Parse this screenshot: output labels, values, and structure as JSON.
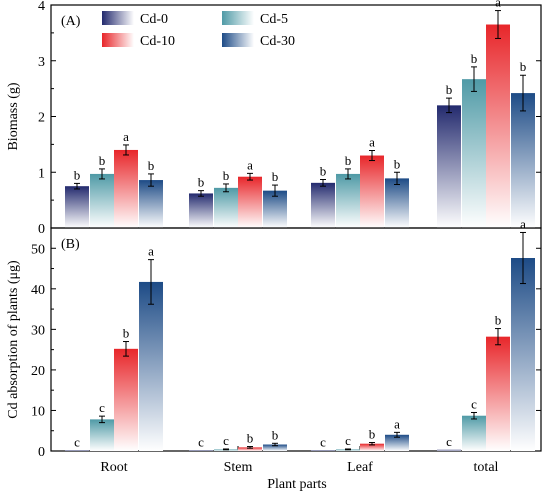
{
  "figure": {
    "xlabel": "Plant parts"
  },
  "colors": {
    "Cd-0": {
      "dark": "#232a6e",
      "light": "#ffffff"
    },
    "Cd-5": {
      "dark": "#4f9aa6",
      "light": "#ffffff"
    },
    "Cd-10": {
      "dark": "#e8262a",
      "light": "#ffffff"
    },
    "Cd-30": {
      "dark": "#1d4b86",
      "light": "#ffffff"
    }
  },
  "chart_data": [
    {
      "type": "bar",
      "panel_label": "(A)",
      "ylabel": "Biomass (g)",
      "ylim": [
        0,
        4
      ],
      "yticks": [
        "0",
        "1",
        "2",
        "3",
        "4"
      ],
      "categories": [
        "Root",
        "Stem",
        "Leaf",
        "total"
      ],
      "legend": {
        "placement": "top-left",
        "entries": [
          "Cd-0",
          "Cd-5",
          "Cd-10",
          "Cd-30"
        ]
      },
      "series": [
        {
          "name": "Cd-0",
          "values": [
            0.75,
            0.62,
            0.81,
            2.2
          ],
          "errors": [
            0.05,
            0.05,
            0.06,
            0.13
          ],
          "labels": [
            "b",
            "b",
            "b",
            "b"
          ]
        },
        {
          "name": "Cd-5",
          "values": [
            0.97,
            0.72,
            0.97,
            2.67
          ],
          "errors": [
            0.09,
            0.07,
            0.09,
            0.22
          ],
          "labels": [
            "b",
            "b",
            "b",
            "b"
          ]
        },
        {
          "name": "Cd-10",
          "values": [
            1.4,
            0.92,
            1.3,
            3.65
          ],
          "errors": [
            0.09,
            0.06,
            0.09,
            0.25
          ],
          "labels": [
            "a",
            "a",
            "a",
            "a"
          ]
        },
        {
          "name": "Cd-30",
          "values": [
            0.86,
            0.67,
            0.89,
            2.42
          ],
          "errors": [
            0.11,
            0.1,
            0.11,
            0.32
          ],
          "labels": [
            "b",
            "b",
            "b",
            "b"
          ]
        }
      ]
    },
    {
      "type": "bar",
      "panel_label": "(B)",
      "ylabel": "Cd absorption of plants (μg)",
      "ylim": [
        0,
        55
      ],
      "yticks": [
        "0",
        "10",
        "20",
        "30",
        "40",
        "50"
      ],
      "categories": [
        "Root",
        "Stem",
        "Leaf",
        "total"
      ],
      "series": [
        {
          "name": "Cd-0",
          "values": [
            0.1,
            0.1,
            0.1,
            0.3
          ],
          "errors": [
            0,
            0,
            0,
            0
          ],
          "labels": [
            "c",
            "c",
            "c",
            "c"
          ]
        },
        {
          "name": "Cd-5",
          "values": [
            7.8,
            0.4,
            0.4,
            8.7
          ],
          "errors": [
            0.8,
            0.1,
            0.1,
            0.8
          ],
          "labels": [
            "c",
            "c",
            "c",
            "c"
          ]
        },
        {
          "name": "Cd-10",
          "values": [
            25.2,
            0.9,
            1.8,
            28.2
          ],
          "errors": [
            1.8,
            0.2,
            0.3,
            2.0
          ],
          "labels": [
            "b",
            "b",
            "b",
            "b"
          ]
        },
        {
          "name": "Cd-30",
          "values": [
            41.7,
            1.6,
            4.0,
            47.6
          ],
          "errors": [
            5.5,
            0.3,
            0.6,
            6.3
          ],
          "labels": [
            "a",
            "b",
            "a",
            "a"
          ]
        }
      ]
    }
  ]
}
